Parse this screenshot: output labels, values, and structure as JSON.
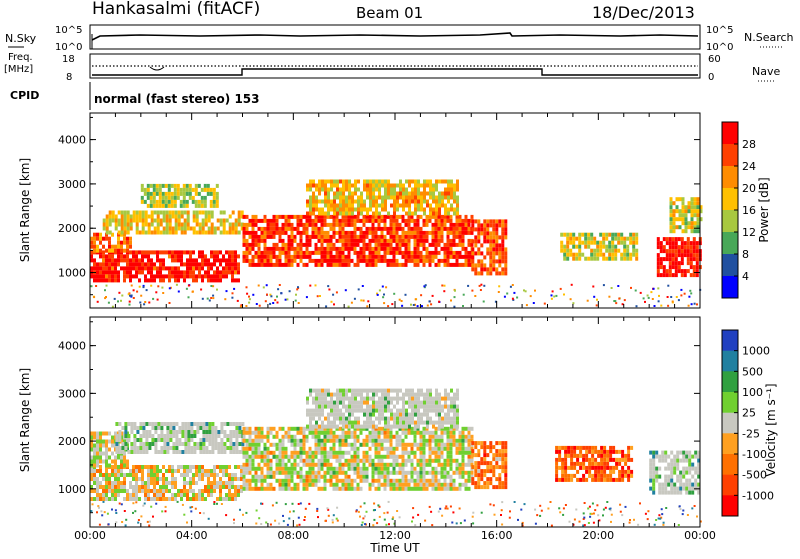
{
  "header": {
    "station": "Hankasalmi (fitACF)",
    "beam": "Beam 01",
    "date": "18/Dec/2013"
  },
  "strips": {
    "nsky": {
      "label": "N.Sky",
      "tick_top": "10^5",
      "tick_bottom": "10^0",
      "tick_top_right": "10^5",
      "tick_bottom_right": "10^0",
      "right_label": "N.Search"
    },
    "freq": {
      "label_1": "Freq.",
      "label_2": "[MHz]",
      "tick_top": "18",
      "tick_bottom": "8",
      "right_tick_top": "60",
      "right_tick_bottom": "0",
      "right_label": "Nave"
    },
    "cpid": {
      "label": "CPID",
      "mode_text": "normal (fast stereo) 153"
    }
  },
  "x_axis": {
    "label": "Time UT",
    "tick_labels": [
      "00:00",
      "04:00",
      "08:00",
      "12:00",
      "16:00",
      "20:00",
      "00:00"
    ],
    "range_hours": [
      0,
      24
    ]
  },
  "colorbars": {
    "power": {
      "label": "Power [dB]",
      "tick_labels": [
        "28",
        "24",
        "20",
        "16",
        "12",
        "8",
        "4"
      ],
      "colors": [
        "#ff0000",
        "#ff4000",
        "#ff8c00",
        "#ffc000",
        "#a8c840",
        "#48a858",
        "#2050a0",
        "#0000ff"
      ]
    },
    "velocity": {
      "label": "Velocity [m s⁻¹]",
      "tick_labels": [
        "1000",
        "500",
        "100",
        "25",
        "-25",
        "-100",
        "-500",
        "-1000"
      ],
      "colors": [
        "#2040c0",
        "#2080a0",
        "#30a040",
        "#70d030",
        "#c8c8c0",
        "#ffa020",
        "#ff7000",
        "#ff4000",
        "#ff0000"
      ]
    }
  },
  "chart_data": [
    {
      "type": "heatmap",
      "name": "power_panel",
      "ylabel": "Slant Range [km]",
      "y_tick_labels": [
        "1000",
        "2000",
        "3000",
        "4000"
      ],
      "ylim": [
        200,
        4600
      ],
      "xlim": [
        0,
        24
      ],
      "echo_regions": [
        {
          "t0": 0.0,
          "t1": 5.8,
          "r0": 800,
          "r1": 1500,
          "level": 0.92
        },
        {
          "t0": 0.0,
          "t1": 1.6,
          "r0": 1500,
          "r1": 1900,
          "level": 0.75
        },
        {
          "t0": 0.5,
          "t1": 6.0,
          "r0": 1900,
          "r1": 2400,
          "level": 0.55
        },
        {
          "t0": 2.0,
          "t1": 5.0,
          "r0": 2500,
          "r1": 3000,
          "level": 0.45
        },
        {
          "t0": 6.0,
          "t1": 15.0,
          "r0": 1200,
          "r1": 2300,
          "level": 0.85
        },
        {
          "t0": 8.5,
          "t1": 14.5,
          "r0": 2300,
          "r1": 3100,
          "level": 0.6
        },
        {
          "t0": 15.0,
          "t1": 16.4,
          "r0": 1000,
          "r1": 2200,
          "level": 0.8
        },
        {
          "t0": 18.5,
          "t1": 21.5,
          "r0": 1300,
          "r1": 1900,
          "level": 0.5
        },
        {
          "t0": 22.3,
          "t1": 24.0,
          "r0": 900,
          "r1": 1800,
          "level": 0.93
        },
        {
          "t0": 22.8,
          "t1": 24.0,
          "r0": 1900,
          "r1": 2700,
          "level": 0.5
        }
      ]
    },
    {
      "type": "heatmap",
      "name": "velocity_panel",
      "ylabel": "Slant Range [km]",
      "y_tick_labels": [
        "1000",
        "2000",
        "3000",
        "4000"
      ],
      "ylim": [
        200,
        4600
      ],
      "xlim": [
        0,
        24
      ],
      "echo_regions": [
        {
          "t0": 0.0,
          "t1": 6.0,
          "r0": 800,
          "r1": 1500,
          "level": 0.55
        },
        {
          "t0": 0.0,
          "t1": 1.5,
          "r0": 1500,
          "r1": 2200,
          "level": 0.5
        },
        {
          "t0": 1.0,
          "t1": 6.0,
          "r0": 1800,
          "r1": 2400,
          "level": 0.35
        },
        {
          "t0": 6.0,
          "t1": 15.0,
          "r0": 1000,
          "r1": 2300,
          "level": 0.5
        },
        {
          "t0": 8.5,
          "t1": 14.5,
          "r0": 2300,
          "r1": 3100,
          "level": 0.45
        },
        {
          "t0": 15.0,
          "t1": 16.3,
          "r0": 1000,
          "r1": 2000,
          "level": 0.72
        },
        {
          "t0": 18.3,
          "t1": 21.3,
          "r0": 1200,
          "r1": 1900,
          "level": 0.78
        },
        {
          "t0": 22.0,
          "t1": 24.0,
          "r0": 900,
          "r1": 1800,
          "level": 0.3
        }
      ]
    }
  ]
}
